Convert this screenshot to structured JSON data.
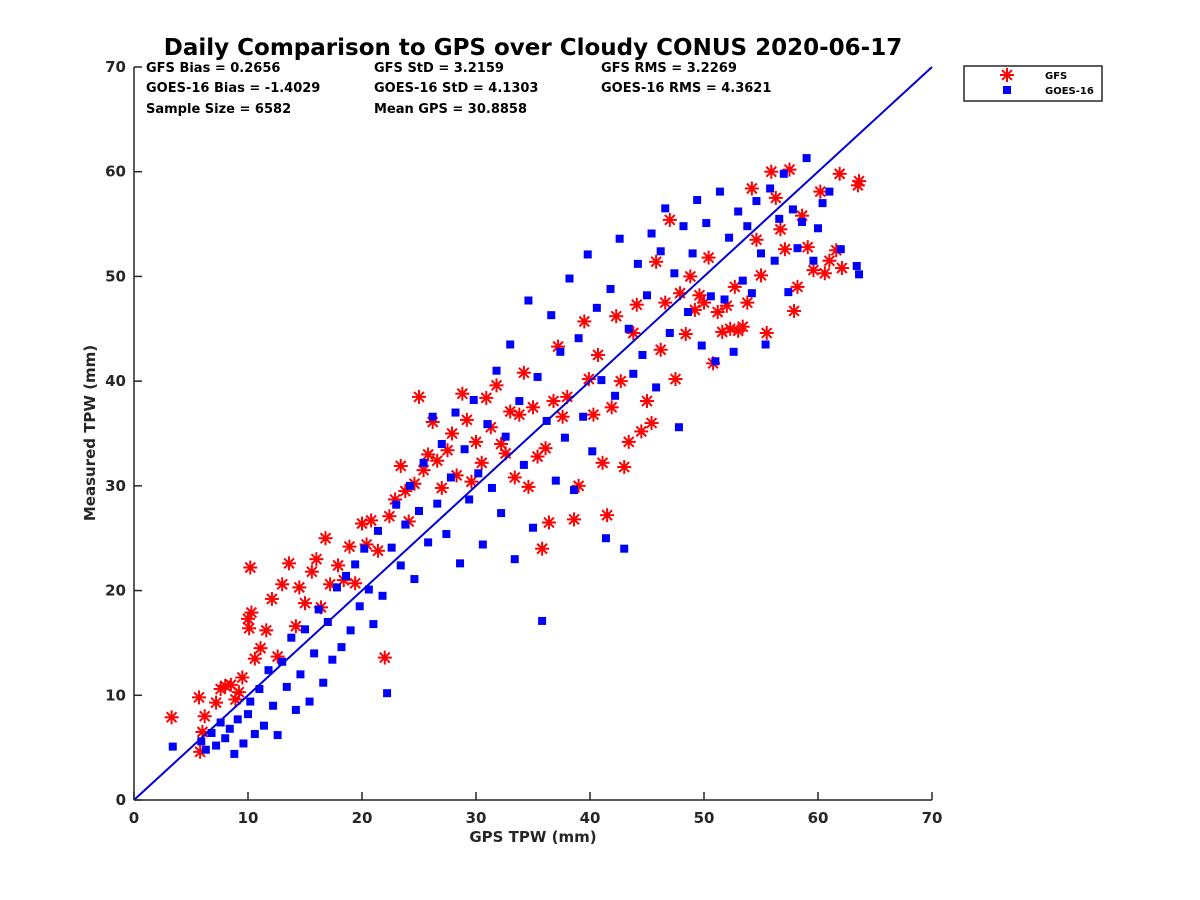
{
  "chart_data": {
    "type": "scatter",
    "title": "Daily Comparison to GPS over Cloudy CONUS 2020-06-17",
    "xlabel": "GPS TPW (mm)",
    "ylabel": "Measured TPW (mm)",
    "xlim": [
      0,
      70
    ],
    "ylim": [
      0,
      70
    ],
    "xticks": [
      "0",
      "10",
      "20",
      "30",
      "40",
      "50",
      "60",
      "70"
    ],
    "yticks": [
      "0",
      "10",
      "20",
      "30",
      "40",
      "50",
      "60",
      "70"
    ],
    "grid": false,
    "legend_position": "outside-top-right",
    "reference_line": {
      "x": [
        0,
        70
      ],
      "y": [
        0,
        70
      ],
      "color": "#0000d6"
    },
    "stats": [
      [
        "GFS Bias = 0.2656",
        "GFS StD = 3.2159",
        "GFS RMS = 3.2269"
      ],
      [
        "GOES-16 Bias = -1.4029",
        "GOES-16 StD = 4.1303",
        "GOES-16 RMS = 4.3621"
      ],
      [
        "Sample Size = 6582",
        "Mean GPS = 30.8858"
      ]
    ],
    "series": [
      {
        "name": "GFS",
        "marker": "asterisk",
        "color": "#ff0000",
        "points": [
          [
            3.3,
            7.9
          ],
          [
            5.7,
            9.8
          ],
          [
            5.8,
            4.6
          ],
          [
            6,
            6.5
          ],
          [
            6.2,
            8
          ],
          [
            7.2,
            9.3
          ],
          [
            7.6,
            10.6
          ],
          [
            8,
            10.9
          ],
          [
            8.5,
            11
          ],
          [
            8.9,
            9.6
          ],
          [
            9.2,
            10.3
          ],
          [
            9.5,
            11.7
          ],
          [
            10,
            17.3
          ],
          [
            10.1,
            16.4
          ],
          [
            10.2,
            22.2
          ],
          [
            10.3,
            17.9
          ],
          [
            10.6,
            13.5
          ],
          [
            11.1,
            14.5
          ],
          [
            11.6,
            16.2
          ],
          [
            12.1,
            19.2
          ],
          [
            12.6,
            13.7
          ],
          [
            13,
            20.6
          ],
          [
            13.6,
            22.6
          ],
          [
            14.2,
            16.6
          ],
          [
            14.5,
            20.3
          ],
          [
            15,
            18.8
          ],
          [
            15.6,
            21.8
          ],
          [
            16,
            23
          ],
          [
            16.4,
            18.4
          ],
          [
            16.8,
            25
          ],
          [
            17.2,
            20.6
          ],
          [
            17.9,
            22.4
          ],
          [
            18.4,
            21
          ],
          [
            18.9,
            24.2
          ],
          [
            19.4,
            20.7
          ],
          [
            20,
            26.4
          ],
          [
            20.4,
            24.4
          ],
          [
            20.8,
            26.7
          ],
          [
            21.4,
            23.8
          ],
          [
            22,
            13.6
          ],
          [
            22.4,
            27.1
          ],
          [
            22.9,
            28.7
          ],
          [
            23.4,
            31.9
          ],
          [
            23.8,
            29.5
          ],
          [
            24.1,
            26.6
          ],
          [
            24.6,
            30.2
          ],
          [
            25,
            38.5
          ],
          [
            25.4,
            31.5
          ],
          [
            25.8,
            33
          ],
          [
            26.2,
            36.1
          ],
          [
            26.6,
            32.4
          ],
          [
            27,
            29.8
          ],
          [
            27.5,
            33.4
          ],
          [
            27.9,
            35
          ],
          [
            28.3,
            31
          ],
          [
            28.8,
            38.8
          ],
          [
            29.2,
            36.3
          ],
          [
            29.6,
            30.4
          ],
          [
            30,
            34.2
          ],
          [
            30.5,
            32.2
          ],
          [
            30.9,
            38.4
          ],
          [
            31.3,
            35.6
          ],
          [
            31.8,
            39.6
          ],
          [
            32.2,
            34
          ],
          [
            32.6,
            33.1
          ],
          [
            33,
            37.1
          ],
          [
            33.4,
            30.8
          ],
          [
            33.8,
            36.8
          ],
          [
            34.2,
            40.8
          ],
          [
            34.6,
            29.9
          ],
          [
            35,
            37.5
          ],
          [
            35.4,
            32.8
          ],
          [
            35.8,
            24
          ],
          [
            36.1,
            33.6
          ],
          [
            36.4,
            26.5
          ],
          [
            36.8,
            38.1
          ],
          [
            37.2,
            43.3
          ],
          [
            37.6,
            36.6
          ],
          [
            38,
            38.5
          ],
          [
            38.6,
            26.8
          ],
          [
            39,
            30
          ],
          [
            39.5,
            45.7
          ],
          [
            39.9,
            40.2
          ],
          [
            40.3,
            36.8
          ],
          [
            40.7,
            42.5
          ],
          [
            41.1,
            32.2
          ],
          [
            41.5,
            27.2
          ],
          [
            41.9,
            37.5
          ],
          [
            42.3,
            46.2
          ],
          [
            42.7,
            40
          ],
          [
            43,
            31.8
          ],
          [
            43.4,
            34.2
          ],
          [
            43.8,
            44.6
          ],
          [
            44.1,
            47.3
          ],
          [
            44.5,
            35.2
          ],
          [
            45,
            38.1
          ],
          [
            45.4,
            36
          ],
          [
            45.8,
            51.4
          ],
          [
            46.2,
            43
          ],
          [
            46.6,
            47.5
          ],
          [
            47,
            55.4
          ],
          [
            47.5,
            40.2
          ],
          [
            47.9,
            48.4
          ],
          [
            48.4,
            44.5
          ],
          [
            48.8,
            50
          ],
          [
            49.2,
            46.8
          ],
          [
            49.6,
            48.2
          ],
          [
            50,
            47.5
          ],
          [
            50.4,
            51.8
          ],
          [
            50.8,
            41.7
          ],
          [
            51.2,
            46.6
          ],
          [
            51.6,
            44.7
          ],
          [
            52,
            47.2
          ],
          [
            52.3,
            45
          ],
          [
            52.7,
            49
          ],
          [
            53,
            44.8
          ],
          [
            53.4,
            45.2
          ],
          [
            53.8,
            47.5
          ],
          [
            54.2,
            58.4
          ],
          [
            54.6,
            53.5
          ],
          [
            55,
            50.1
          ],
          [
            55.5,
            44.6
          ],
          [
            55.9,
            60
          ],
          [
            56.3,
            57.5
          ],
          [
            56.7,
            54.5
          ],
          [
            57.1,
            52.6
          ],
          [
            57.5,
            60.2
          ],
          [
            57.9,
            46.7
          ],
          [
            58.2,
            49
          ],
          [
            58.6,
            55.8
          ],
          [
            59.1,
            52.8
          ],
          [
            59.6,
            50.6
          ],
          [
            60.2,
            58.1
          ],
          [
            60.6,
            50.3
          ],
          [
            61,
            51.5
          ],
          [
            61.6,
            52.5
          ],
          [
            61.9,
            59.8
          ],
          [
            62.1,
            50.8
          ],
          [
            63.5,
            58.7
          ],
          [
            63.6,
            59.1
          ]
        ]
      },
      {
        "name": "GOES-16",
        "marker": "square",
        "color": "#0000ff",
        "points": [
          [
            3.4,
            5.1
          ],
          [
            5.9,
            5.6
          ],
          [
            6.3,
            4.8
          ],
          [
            6.8,
            6.4
          ],
          [
            7.2,
            5.2
          ],
          [
            7.6,
            7.4
          ],
          [
            8,
            5.9
          ],
          [
            8.4,
            6.8
          ],
          [
            8.8,
            4.4
          ],
          [
            9.1,
            7.7
          ],
          [
            9.6,
            5.4
          ],
          [
            10,
            8.2
          ],
          [
            10.2,
            9.4
          ],
          [
            10.6,
            6.3
          ],
          [
            11,
            10.6
          ],
          [
            11.4,
            7.1
          ],
          [
            11.8,
            12.4
          ],
          [
            12.2,
            9
          ],
          [
            12.6,
            6.2
          ],
          [
            13,
            13.2
          ],
          [
            13.4,
            10.8
          ],
          [
            13.8,
            15.5
          ],
          [
            14.2,
            8.6
          ],
          [
            14.6,
            12
          ],
          [
            15,
            16.3
          ],
          [
            15.4,
            9.4
          ],
          [
            15.8,
            14
          ],
          [
            16.2,
            18.2
          ],
          [
            16.6,
            11.2
          ],
          [
            17,
            17
          ],
          [
            17.4,
            13.4
          ],
          [
            17.8,
            20.3
          ],
          [
            18.2,
            14.6
          ],
          [
            18.6,
            21.4
          ],
          [
            19,
            16.2
          ],
          [
            19.4,
            22.5
          ],
          [
            19.8,
            18.5
          ],
          [
            20.2,
            24
          ],
          [
            20.6,
            20.1
          ],
          [
            21,
            16.8
          ],
          [
            21.4,
            25.7
          ],
          [
            21.8,
            19.5
          ],
          [
            22.2,
            10.2
          ],
          [
            22.6,
            24.1
          ],
          [
            23,
            28.2
          ],
          [
            23.4,
            22.4
          ],
          [
            23.8,
            26.3
          ],
          [
            24.2,
            30
          ],
          [
            24.6,
            21.1
          ],
          [
            25,
            27.6
          ],
          [
            25.4,
            32.2
          ],
          [
            25.8,
            24.6
          ],
          [
            26.2,
            36.6
          ],
          [
            26.6,
            28.3
          ],
          [
            27,
            34
          ],
          [
            27.4,
            25.4
          ],
          [
            27.8,
            30.8
          ],
          [
            28.2,
            37
          ],
          [
            28.6,
            22.6
          ],
          [
            29,
            33.5
          ],
          [
            29.4,
            28.7
          ],
          [
            29.8,
            38.2
          ],
          [
            30.2,
            31.2
          ],
          [
            30.6,
            24.4
          ],
          [
            31,
            35.9
          ],
          [
            31.4,
            29.8
          ],
          [
            31.8,
            41
          ],
          [
            32.2,
            27.4
          ],
          [
            32.6,
            34.7
          ],
          [
            33,
            43.5
          ],
          [
            33.4,
            23
          ],
          [
            33.8,
            38.1
          ],
          [
            34.2,
            32
          ],
          [
            34.6,
            47.7
          ],
          [
            35,
            26
          ],
          [
            35.4,
            40.4
          ],
          [
            35.8,
            17.1
          ],
          [
            36.2,
            36.2
          ],
          [
            36.6,
            46.3
          ],
          [
            37,
            30.5
          ],
          [
            37.4,
            42.8
          ],
          [
            37.8,
            34.6
          ],
          [
            38.2,
            49.8
          ],
          [
            38.6,
            29.6
          ],
          [
            39,
            44.1
          ],
          [
            39.4,
            36.6
          ],
          [
            39.8,
            52.1
          ],
          [
            40.2,
            33.3
          ],
          [
            40.6,
            47
          ],
          [
            41,
            40.1
          ],
          [
            41.4,
            25
          ],
          [
            41.8,
            48.8
          ],
          [
            42.2,
            38.6
          ],
          [
            42.6,
            53.6
          ],
          [
            43,
            24
          ],
          [
            43.4,
            45
          ],
          [
            43.8,
            40.7
          ],
          [
            44.2,
            51.2
          ],
          [
            44.6,
            42.5
          ],
          [
            45,
            48.2
          ],
          [
            45.4,
            54.1
          ],
          [
            45.8,
            39.4
          ],
          [
            46.2,
            52.4
          ],
          [
            46.6,
            56.5
          ],
          [
            47,
            44.6
          ],
          [
            47.4,
            50.3
          ],
          [
            47.8,
            35.6
          ],
          [
            48.2,
            54.8
          ],
          [
            48.6,
            46.6
          ],
          [
            49,
            52.2
          ],
          [
            49.4,
            57.3
          ],
          [
            49.8,
            43.4
          ],
          [
            50.2,
            55.1
          ],
          [
            50.6,
            48.1
          ],
          [
            51,
            41.9
          ],
          [
            51.4,
            58.1
          ],
          [
            51.8,
            47.8
          ],
          [
            52.2,
            53.7
          ],
          [
            52.6,
            42.8
          ],
          [
            53,
            56.2
          ],
          [
            53.4,
            49.6
          ],
          [
            53.8,
            54.8
          ],
          [
            54.2,
            48.4
          ],
          [
            54.6,
            57.2
          ],
          [
            55,
            52.2
          ],
          [
            55.4,
            43.5
          ],
          [
            55.8,
            58.4
          ],
          [
            56.2,
            51.5
          ],
          [
            56.6,
            55.5
          ],
          [
            57,
            59.8
          ],
          [
            57.4,
            48.5
          ],
          [
            57.8,
            56.4
          ],
          [
            58.2,
            52.7
          ],
          [
            58.6,
            55.2
          ],
          [
            59,
            61.3
          ],
          [
            59.6,
            51.5
          ],
          [
            60,
            54.6
          ],
          [
            60.4,
            57
          ],
          [
            61,
            58.1
          ],
          [
            62,
            52.6
          ],
          [
            63.6,
            50.2
          ],
          [
            63.4,
            51
          ]
        ]
      }
    ]
  }
}
